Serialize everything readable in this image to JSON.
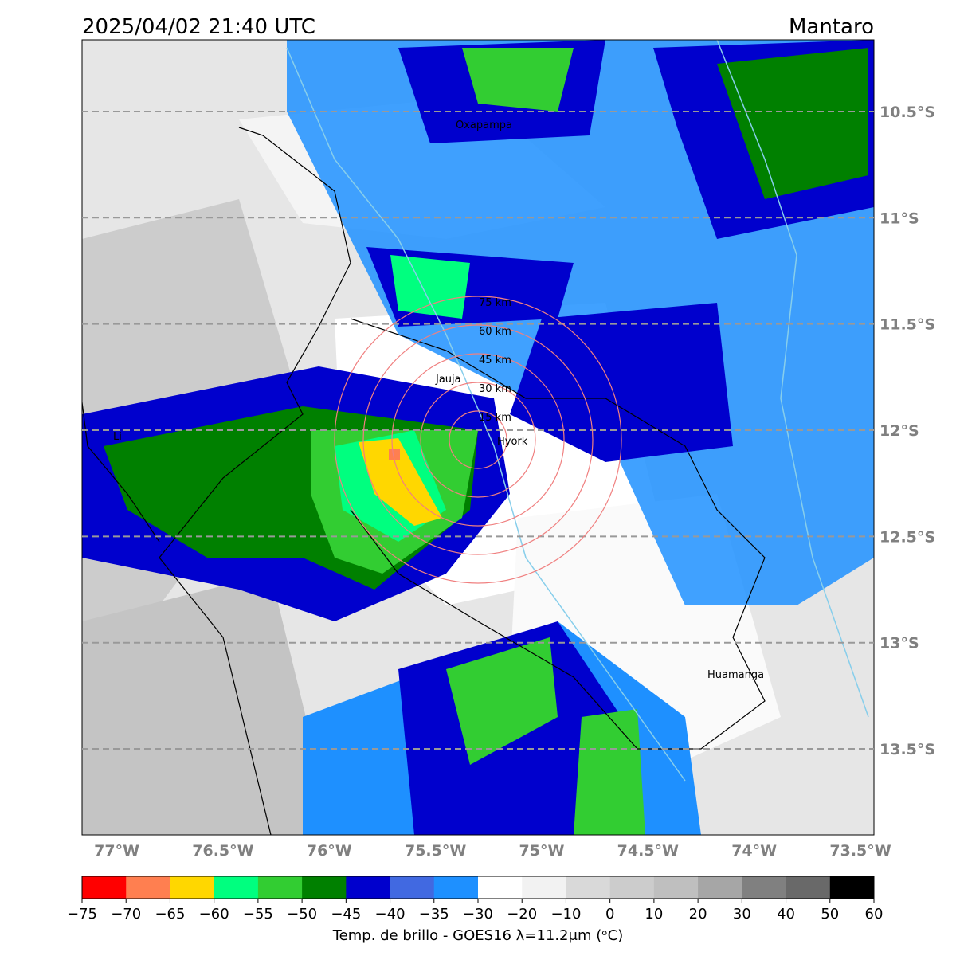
{
  "header": {
    "title": "2025/04/02 21:40 UTC",
    "region": "Mantaro"
  },
  "map": {
    "lat_labels": [
      {
        "value": -10.5,
        "label": "10.5°S"
      },
      {
        "value": -11,
        "label": "11°S"
      },
      {
        "value": -11.5,
        "label": "11.5°S"
      },
      {
        "value": -12,
        "label": "12°S"
      },
      {
        "value": -12.5,
        "label": "12.5°S"
      },
      {
        "value": -13,
        "label": "13°S"
      },
      {
        "value": -13.5,
        "label": "13.5°S"
      }
    ],
    "lon_labels": [
      {
        "value": -77,
        "label": "77°W"
      },
      {
        "value": -76.5,
        "label": "76.5°W"
      },
      {
        "value": -76,
        "label": "76°W"
      },
      {
        "value": -75.5,
        "label": "75.5°W"
      },
      {
        "value": -75,
        "label": "75°W"
      },
      {
        "value": -74.5,
        "label": "74.5°W"
      },
      {
        "value": -74,
        "label": "74°W"
      },
      {
        "value": -73.5,
        "label": "73.5°W"
      }
    ],
    "rings": [
      "15 km",
      "30 km",
      "45 km",
      "60 km",
      "75 km"
    ],
    "cities": [
      "Oxapampa",
      "Jauja",
      "Hyork",
      "Huamanga",
      "Li"
    ]
  },
  "colorbar": {
    "bounds": [
      {
        "value": -75,
        "label": "−75"
      },
      {
        "value": -70,
        "label": "−70"
      },
      {
        "value": -65,
        "label": "−65"
      },
      {
        "value": -60,
        "label": "−60"
      },
      {
        "value": -55,
        "label": "−55"
      },
      {
        "value": -50,
        "label": "−50"
      },
      {
        "value": -45,
        "label": "−45"
      },
      {
        "value": -40,
        "label": "−40"
      },
      {
        "value": -35,
        "label": "−35"
      },
      {
        "value": -30,
        "label": "−30"
      },
      {
        "value": -20,
        "label": "−20"
      },
      {
        "value": -10,
        "label": "−10"
      },
      0,
      10,
      20,
      30,
      40,
      50,
      60
    ],
    "colors": [
      "#ff0000",
      "#ff7f50",
      "#ffd700",
      "#00ff7f",
      "#32cd32",
      "#008000",
      "#0000cd",
      "#4169e1",
      "#1e90ff",
      "#ffffff",
      "#f2f2f2",
      "#d9d9d9",
      "#cccccc",
      "#bfbfbf",
      "#a6a6a6",
      "#808080",
      "#696969",
      "#000000"
    ],
    "label": "Temp. de brillo - GOES16 λ=11.2μm (ᵒC)"
  }
}
